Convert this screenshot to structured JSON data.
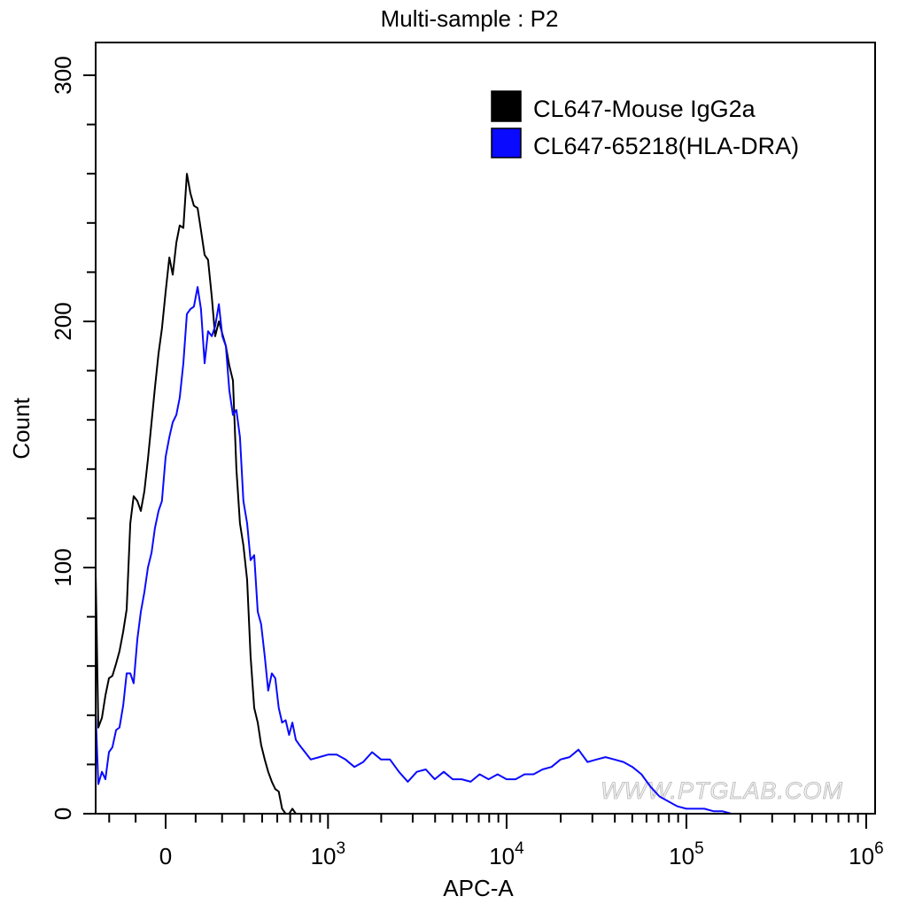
{
  "chart_data": {
    "type": "line",
    "title": "Multi-sample : P2",
    "xlabel": "APC-A",
    "ylabel": "Count",
    "x_scale": "biexponential",
    "xlim": [
      -259,
      1000000
    ],
    "ylim": [
      0,
      300
    ],
    "grid": false,
    "legend_position": "top-right",
    "y_ticks": [
      "0",
      "100",
      "200",
      "300"
    ],
    "x_ticks": [
      {
        "value": 0,
        "base": "0",
        "exp": ""
      },
      {
        "value": 1000,
        "base": "10",
        "exp": "3"
      },
      {
        "value": 10000,
        "base": "10",
        "exp": "4"
      },
      {
        "value": 100000,
        "base": "10",
        "exp": "5"
      },
      {
        "value": 1000000,
        "base": "10",
        "exp": "6"
      }
    ],
    "series": [
      {
        "name": "CL647-Mouse IgG2a",
        "color": "#000000",
        "x": [
          -259,
          -247,
          -231,
          -216,
          -201,
          -187,
          -172,
          -159,
          -145,
          -132,
          -119,
          -107,
          -94,
          -82,
          -70,
          -58,
          -46,
          -35,
          -23,
          -12,
          0,
          12,
          23,
          35,
          46,
          58,
          70,
          82,
          94,
          107,
          119,
          132,
          145,
          159,
          172,
          187,
          201,
          216,
          231,
          247,
          263,
          280,
          297,
          316,
          334,
          354,
          374,
          394,
          416,
          438,
          462,
          486,
          511,
          536,
          563,
          591,
          619,
          649,
          680
        ],
        "y": [
          96,
          35,
          39,
          48,
          55,
          56,
          61,
          66,
          74,
          83,
          118,
          129,
          127,
          123,
          131,
          144,
          159,
          173,
          187,
          197,
          212,
          226,
          219,
          232,
          239,
          238,
          260,
          252,
          247,
          246,
          237,
          227,
          225,
          210,
          194,
          200,
          195,
          190,
          182,
          176,
          140,
          118,
          109,
          95,
          64,
          43,
          37,
          28,
          22,
          17,
          13,
          10,
          9,
          2,
          0,
          0,
          2,
          0,
          0
        ]
      },
      {
        "name": "CL647-65218(HLA-DRA)",
        "color": "#0a0aff",
        "x": [
          -259,
          -247,
          -231,
          -216,
          -201,
          -187,
          -172,
          -159,
          -145,
          -132,
          -119,
          -107,
          -94,
          -82,
          -70,
          -58,
          -46,
          -35,
          -23,
          -12,
          0,
          12,
          23,
          35,
          46,
          58,
          70,
          82,
          94,
          107,
          119,
          132,
          145,
          159,
          172,
          187,
          201,
          216,
          231,
          247,
          263,
          280,
          297,
          316,
          334,
          354,
          374,
          394,
          416,
          438,
          462,
          486,
          511,
          536,
          563,
          591,
          619,
          649,
          680,
          794,
          891,
          1000,
          1122,
          1259,
          1413,
          1585,
          1778,
          1995,
          2239,
          2512,
          2818,
          3162,
          3548,
          3981,
          4467,
          5012,
          5623,
          6310,
          7079,
          7943,
          8913,
          10000,
          11220,
          12589,
          14125,
          15849,
          17783,
          19953,
          22387,
          25119,
          28184,
          31623,
          35481,
          39811,
          44668,
          50119,
          56234,
          63096,
          70795,
          79433,
          89125,
          100000,
          112202,
          125893,
          141254,
          158489,
          177828
        ],
        "y": [
          40,
          12,
          17,
          14,
          25,
          27,
          34,
          35,
          44,
          57,
          57,
          53,
          71,
          82,
          90,
          100,
          106,
          116,
          123,
          127,
          145,
          153,
          159,
          162,
          169,
          183,
          203,
          205,
          206,
          214,
          205,
          183,
          196,
          194,
          198,
          207,
          194,
          190,
          172,
          162,
          164,
          153,
          127,
          118,
          103,
          105,
          82,
          77,
          64,
          50,
          57,
          55,
          43,
          37,
          38,
          32,
          37,
          30,
          28,
          22,
          23,
          24,
          24,
          22,
          19,
          21,
          25,
          22,
          22,
          17,
          13,
          17,
          18,
          14,
          17,
          14,
          14,
          13,
          16,
          14,
          16,
          14,
          14,
          16,
          16,
          18,
          19,
          22,
          23,
          26,
          21,
          22,
          23,
          22,
          21,
          19,
          16,
          11,
          7,
          5,
          3,
          2,
          2,
          2,
          1,
          1,
          0
        ]
      }
    ]
  },
  "watermark": "WWW.PTGLAB.COM"
}
